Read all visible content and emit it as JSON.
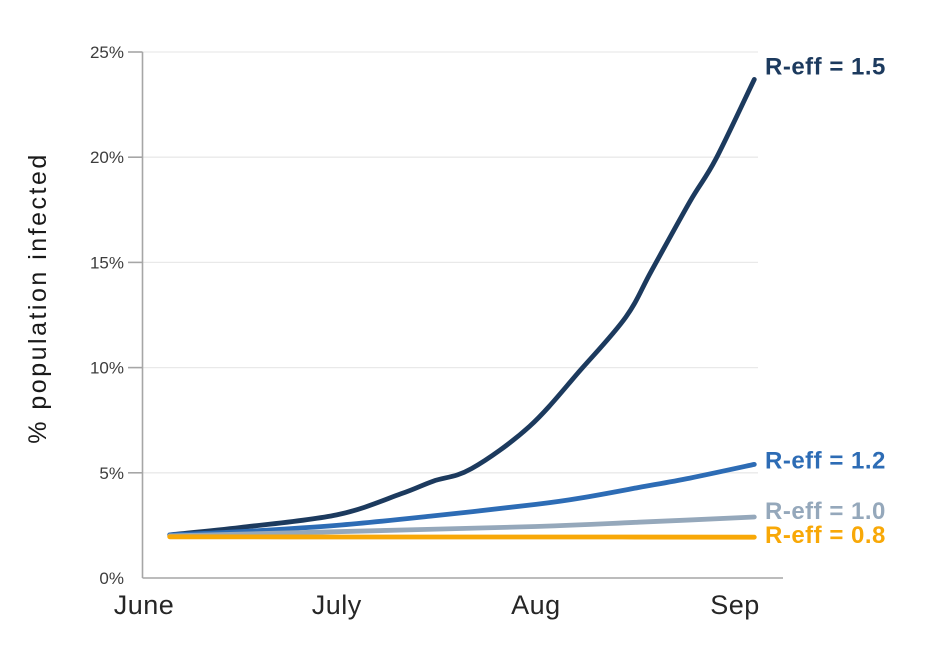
{
  "chart_data": {
    "type": "line",
    "title": "",
    "xlabel": "",
    "ylabel": "% population infected",
    "x_unit": "days since June 1",
    "ylim": [
      0,
      25
    ],
    "grid": "horizontal",
    "legend_position": "end-of-line-labels",
    "axis_color": "#a6a6a6",
    "gridline_color": "#e9e9e9",
    "yticks": [
      {
        "value": 0,
        "label": "0%"
      },
      {
        "value": 5,
        "label": "5%"
      },
      {
        "value": 10,
        "label": "10%"
      },
      {
        "value": 15,
        "label": "15%"
      },
      {
        "value": 20,
        "label": "20%"
      },
      {
        "value": 25,
        "label": "25%"
      }
    ],
    "xticks": [
      {
        "day": 0,
        "label": "June"
      },
      {
        "day": 30,
        "label": "July"
      },
      {
        "day": 61,
        "label": "Aug"
      },
      {
        "day": 92,
        "label": "Sep"
      }
    ],
    "series": [
      {
        "name": "R-eff = 1.5",
        "r_eff": 1.5,
        "color": "#1c3a5e",
        "start_pct": 2.0,
        "end_pct": 23.7,
        "points": [
          [
            4,
            2.05
          ],
          [
            15,
            2.4
          ],
          [
            30,
            3.0
          ],
          [
            40,
            4.0
          ],
          [
            45,
            4.6
          ],
          [
            51,
            5.2
          ],
          [
            60,
            7.2
          ],
          [
            68,
            9.9
          ],
          [
            75,
            12.4
          ],
          [
            79,
            14.6
          ],
          [
            85,
            17.9
          ],
          [
            89,
            19.9
          ],
          [
            95,
            23.7
          ]
        ]
      },
      {
        "name": "R-eff = 1.2",
        "r_eff": 1.2,
        "color": "#2d6cb5",
        "start_pct": 2.0,
        "end_pct": 5.4,
        "points": [
          [
            4,
            2.05
          ],
          [
            15,
            2.2
          ],
          [
            30,
            2.5
          ],
          [
            45,
            2.95
          ],
          [
            61,
            3.5
          ],
          [
            68,
            3.8
          ],
          [
            77,
            4.3
          ],
          [
            85,
            4.75
          ],
          [
            95,
            5.4
          ]
        ]
      },
      {
        "name": "R-eff = 1.0",
        "r_eff": 1.0,
        "color": "#95a8bb",
        "start_pct": 2.0,
        "end_pct": 2.9,
        "points": [
          [
            4,
            2.0
          ],
          [
            30,
            2.2
          ],
          [
            61,
            2.45
          ],
          [
            77,
            2.65
          ],
          [
            95,
            2.9
          ]
        ]
      },
      {
        "name": "R-eff = 0.8",
        "r_eff": 0.8,
        "color": "#f8a807",
        "start_pct": 1.96,
        "end_pct": 1.94,
        "points": [
          [
            4,
            1.96
          ],
          [
            30,
            1.95
          ],
          [
            61,
            1.95
          ],
          [
            95,
            1.94
          ]
        ]
      }
    ]
  }
}
